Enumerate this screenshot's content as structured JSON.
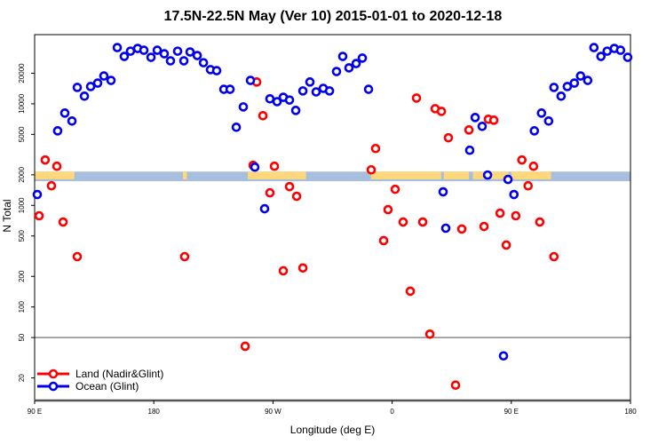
{
  "chart_data": {
    "type": "scatter",
    "title": "17.5N-22.5N May (Ver 10)   2015-01-01 to 2020-12-18",
    "xlabel": "Longitude (deg E)",
    "ylabel": "N Total",
    "x_range_deg": [
      90,
      540
    ],
    "x_wrap_note": "longitudes 90E-180 repeated at right edge",
    "y_scale": "log",
    "ylim": [
      12,
      48000
    ],
    "x_ticks": [
      {
        "v": 90,
        "label": "90 E"
      },
      {
        "v": 180,
        "label": "180"
      },
      {
        "v": 270,
        "label": "90 W"
      },
      {
        "v": 360,
        "label": "0"
      },
      {
        "v": 450,
        "label": "90 E"
      },
      {
        "v": 540,
        "label": "180"
      }
    ],
    "y_ticks": [
      20,
      50,
      100,
      200,
      500,
      1000,
      2000,
      5000,
      10000,
      20000
    ],
    "reference_line": 50,
    "legend_position": "bottom-left",
    "colors": {
      "land": "#ff0000",
      "ocean": "#0000ee",
      "band_ocean": "#a7bedd",
      "band_land": "#fed87a",
      "refline": "#888888"
    },
    "land_band": {
      "y_range": [
        1730,
        2150
      ],
      "land_segments_lon": [
        [
          90,
          120
        ],
        [
          -158,
          -155
        ],
        [
          -109,
          -65
        ],
        [
          -16,
          37
        ],
        [
          39,
          58
        ],
        [
          61,
          88
        ]
      ]
    },
    "series": [
      {
        "name": "Land (Nadir&Glint)",
        "key": "land",
        "points": [
          [
            93.4,
            790
          ],
          [
            98.0,
            2800
          ],
          [
            102.7,
            1560
          ],
          [
            106.8,
            2430
          ],
          [
            111.5,
            686
          ],
          [
            122.2,
            313
          ],
          [
            -156.7,
            313
          ],
          [
            -111.0,
            41
          ],
          [
            -105.0,
            2480
          ],
          [
            -102.3,
            16400
          ],
          [
            -97.6,
            7640
          ],
          [
            -92.3,
            1330
          ],
          [
            -88.9,
            2430
          ],
          [
            -82.2,
            227
          ],
          [
            -77.5,
            1530
          ],
          [
            -72.1,
            1230
          ],
          [
            -67.4,
            242
          ],
          [
            -15.8,
            2240
          ],
          [
            -12.5,
            3630
          ],
          [
            -6.4,
            450
          ],
          [
            -3.1,
            908
          ],
          [
            2.3,
            1440
          ],
          [
            8.3,
            686
          ],
          [
            13.7,
            143
          ],
          [
            18.4,
            11400
          ],
          [
            23.1,
            686
          ],
          [
            28.5,
            54
          ],
          [
            32.5,
            8960
          ],
          [
            37.2,
            8430
          ],
          [
            42.5,
            4630
          ],
          [
            47.9,
            17
          ],
          [
            52.6,
            585
          ],
          [
            58.0,
            5530
          ],
          [
            69.4,
            620
          ],
          [
            72.7,
            7050
          ],
          [
            76.8,
            6900
          ],
          [
            81.5,
            838
          ],
          [
            86.2,
            407
          ]
        ]
      },
      {
        "name": "Ocean (Glint)",
        "key": "ocean",
        "points": [
          [
            92.0,
            1280
          ],
          [
            107.4,
            5420
          ],
          [
            112.8,
            8110
          ],
          [
            118.2,
            6770
          ],
          [
            122.2,
            14500
          ],
          [
            127.6,
            11900
          ],
          [
            132.3,
            14800
          ],
          [
            137.6,
            16000
          ],
          [
            142.3,
            18800
          ],
          [
            147.7,
            17000
          ],
          [
            152.4,
            35800
          ],
          [
            157.7,
            29300
          ],
          [
            162.4,
            33000
          ],
          [
            167.8,
            35100
          ],
          [
            172.5,
            33700
          ],
          [
            177.9,
            28700
          ],
          [
            -177.4,
            33700
          ],
          [
            -172.1,
            31100
          ],
          [
            -167.4,
            26500
          ],
          [
            -162.0,
            33000
          ],
          [
            -157.3,
            26500
          ],
          [
            -152.6,
            32400
          ],
          [
            -147.2,
            29900
          ],
          [
            -142.5,
            25400
          ],
          [
            -137.2,
            21700
          ],
          [
            -132.5,
            21200
          ],
          [
            -127.1,
            13900
          ],
          [
            -122.4,
            13900
          ],
          [
            -117.7,
            5880
          ],
          [
            -112.4,
            9330
          ],
          [
            -107.0,
            17000
          ],
          [
            -103.7,
            2380
          ],
          [
            -96.3,
            927
          ],
          [
            -92.3,
            11200
          ],
          [
            -86.9,
            10500
          ],
          [
            -82.2,
            11600
          ],
          [
            -77.5,
            10900
          ],
          [
            -72.8,
            8610
          ],
          [
            -67.4,
            13400
          ],
          [
            -62.1,
            16400
          ],
          [
            -57.4,
            13100
          ],
          [
            -52.0,
            14200
          ],
          [
            -47.3,
            13400
          ],
          [
            -42.0,
            20800
          ],
          [
            -37.3,
            29300
          ],
          [
            -32.6,
            22600
          ],
          [
            -27.2,
            24900
          ],
          [
            -22.5,
            28200
          ],
          [
            -17.8,
            13900
          ],
          [
            38.5,
            1360
          ],
          [
            40.5,
            596
          ],
          [
            58.6,
            3490
          ],
          [
            62.7,
            7330
          ],
          [
            68.0,
            6000
          ],
          [
            72.1,
            1990
          ],
          [
            84.1,
            33
          ],
          [
            87.5,
            1800
          ]
        ]
      }
    ]
  }
}
